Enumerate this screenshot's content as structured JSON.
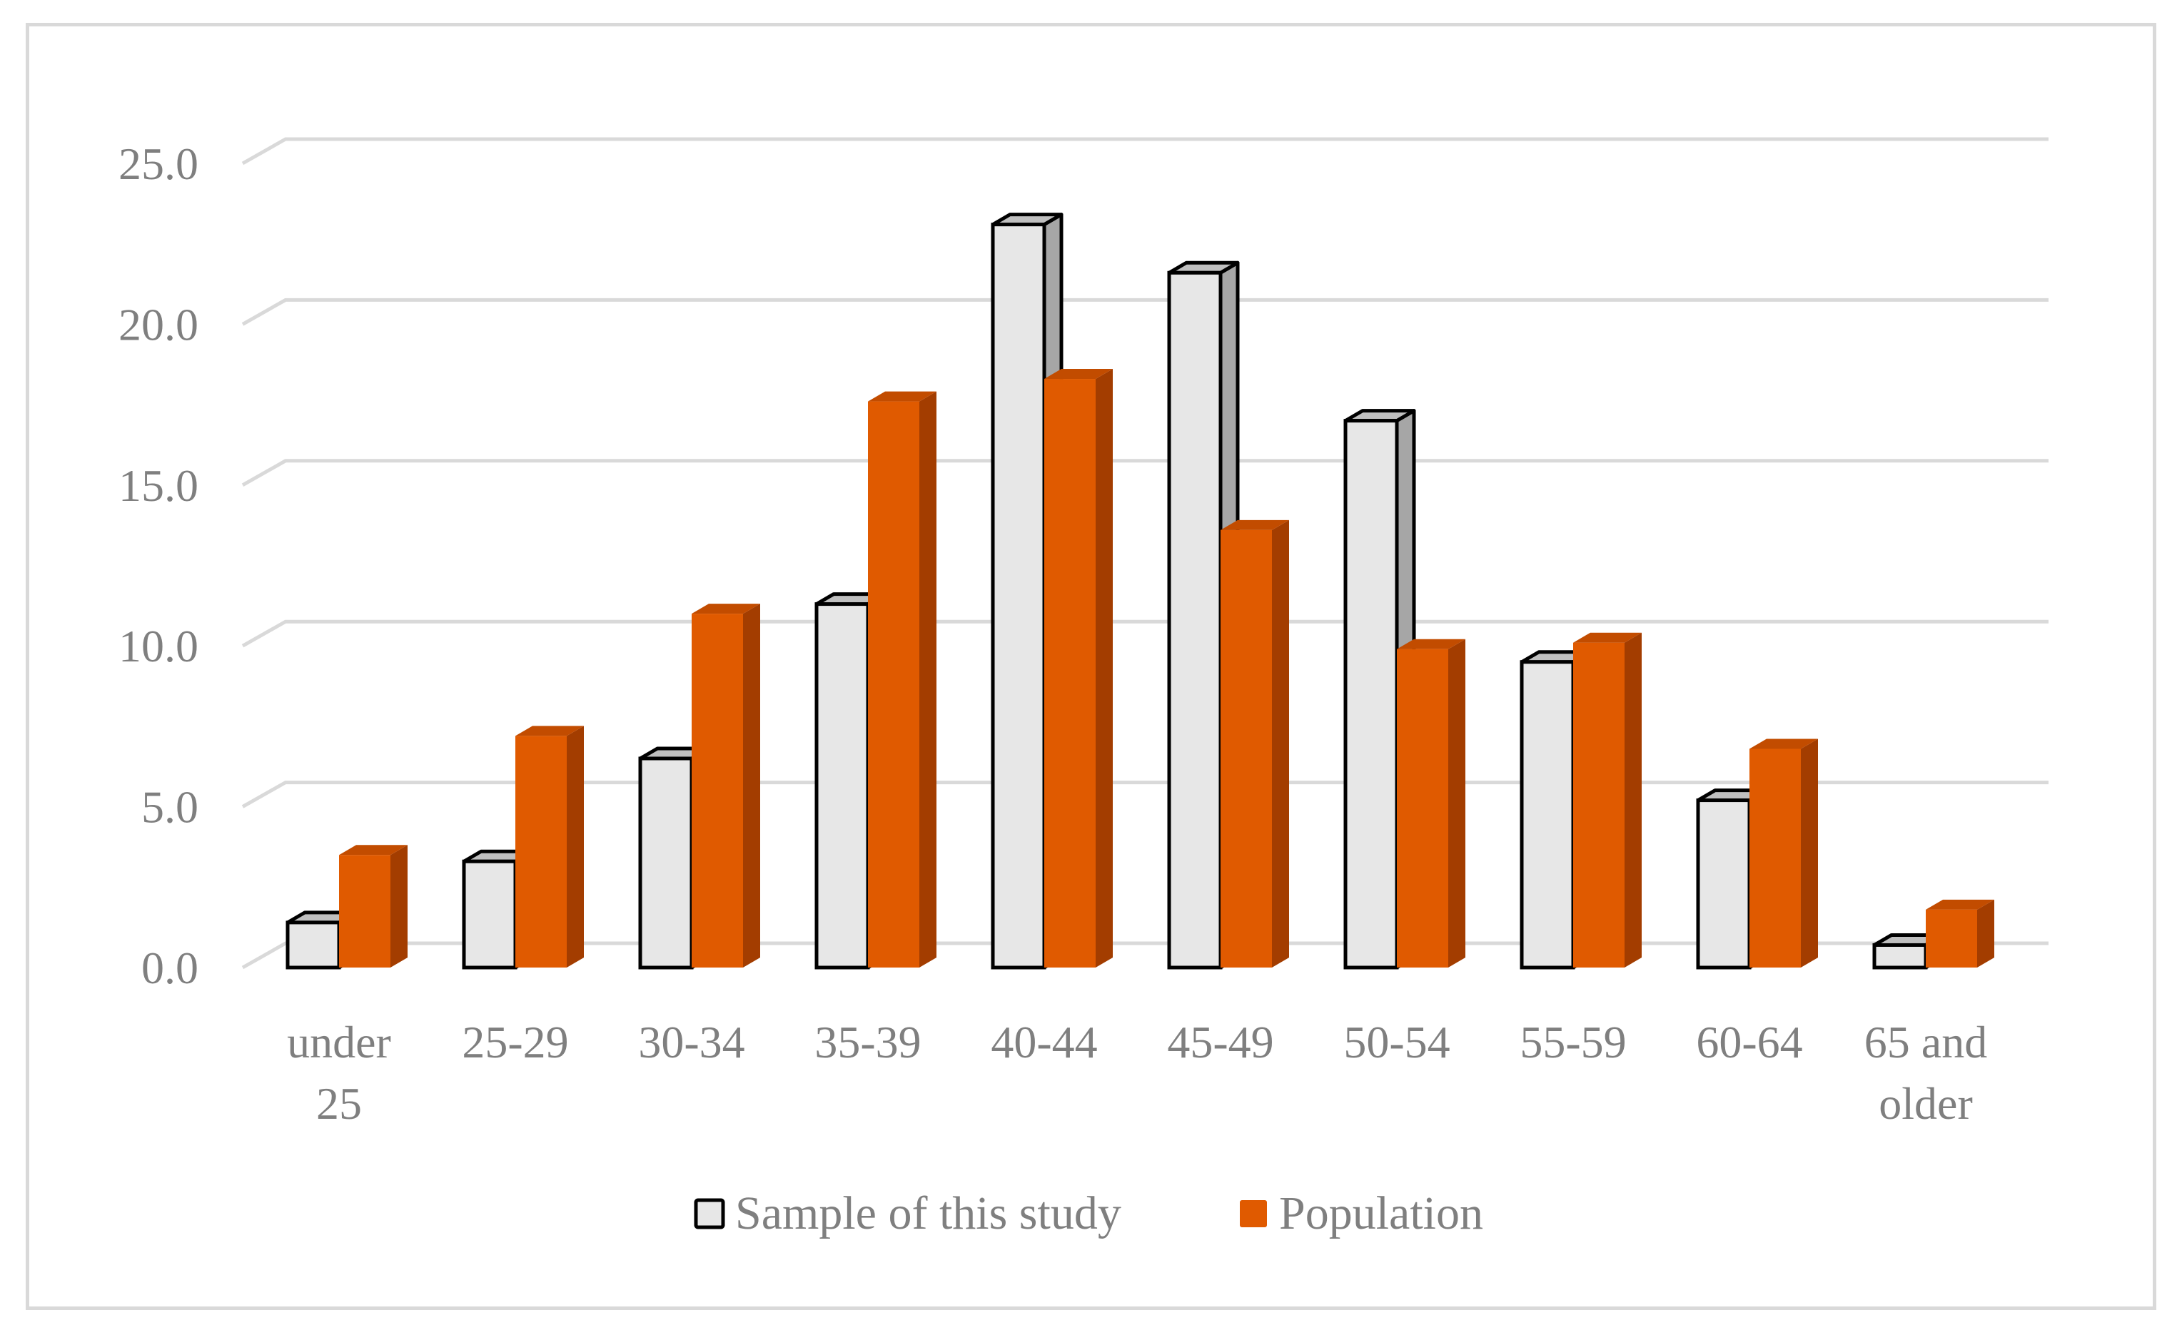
{
  "chart_data": {
    "type": "bar",
    "title": "",
    "xlabel": "",
    "ylabel": "",
    "categories": [
      [
        "under",
        "25"
      ],
      [
        "25-29"
      ],
      [
        "30-34"
      ],
      [
        "35-39"
      ],
      [
        "40-44"
      ],
      [
        "45-49"
      ],
      [
        "50-54"
      ],
      [
        "55-59"
      ],
      [
        "60-64"
      ],
      [
        "65 and",
        "older"
      ]
    ],
    "series": [
      {
        "name": "Sample of this study",
        "color": "#e7e7e7",
        "values": [
          1.4,
          3.3,
          6.5,
          11.3,
          23.1,
          21.6,
          17.0,
          9.5,
          5.2,
          0.7
        ]
      },
      {
        "name": "Population",
        "color": "#e05a00",
        "values": [
          3.5,
          7.2,
          11.0,
          17.6,
          18.3,
          13.6,
          9.9,
          10.1,
          6.8,
          1.8
        ]
      }
    ],
    "yticks": [
      "0.0",
      "5.0",
      "10.0",
      "15.0",
      "20.0",
      "25.0"
    ],
    "ylim": [
      0,
      25
    ],
    "grid": true,
    "legend_position": "bottom",
    "three_d": true
  }
}
